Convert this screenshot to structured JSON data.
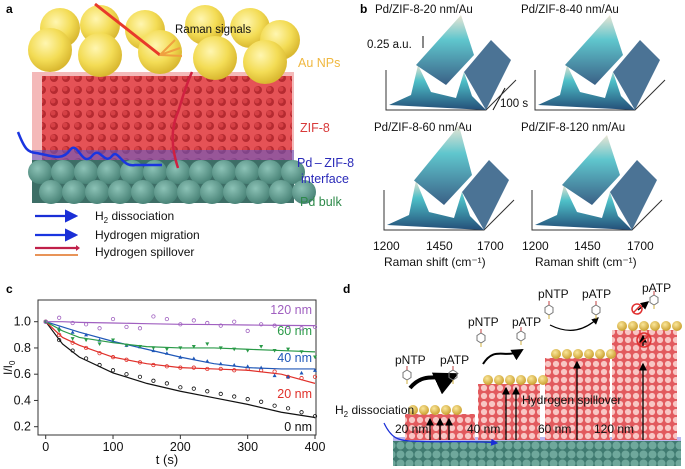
{
  "panel_a": {
    "label": "a",
    "raman_label": "Raman signals",
    "au_label": "Au NPs",
    "zif_label": "ZIF-8",
    "interface_label_1": "Pd – ZIF-8",
    "interface_label_2": "interface",
    "pd_label": "Pd bulk",
    "legend": [
      {
        "text": "H",
        "sub": "2",
        "rest": " dissociation",
        "color": "#1a2fd6"
      },
      {
        "text": "Hydrogen migration",
        "color": "#1a35e0"
      },
      {
        "text": "Hydrogen spillover",
        "color": "#c0204a"
      },
      {
        "text": "",
        "color": "#e07020"
      }
    ],
    "colors": {
      "au": "#f2dc5a",
      "zif": "#e0484c",
      "pd": "#5e9c92",
      "au_text": "#f0b840",
      "zif_text": "#d83a3a",
      "interface_text": "#2a2ab8",
      "pd_text": "#2e8a4a"
    }
  },
  "panel_b": {
    "label": "b",
    "titles": [
      "Pd/ZIF-8-20 nm/Au",
      "Pd/ZIF-8-40 nm/Au",
      "Pd/ZIF-8-60 nm/Au",
      "Pd/ZIF-8-120 nm/Au"
    ],
    "scale_label": "0.25 a.u.",
    "time_label": "100 s",
    "x_ticks": [
      "1200",
      "1450",
      "1700"
    ],
    "xlabel": "Raman shift (cm⁻¹)"
  },
  "chart_data": {
    "type": "scatter",
    "panel_label": "c",
    "xlabel": "t (s)",
    "ylabel": "I/I",
    "ylabel_sub": "0",
    "xlim": [
      0,
      400
    ],
    "ylim": [
      0.15,
      1.1
    ],
    "x_ticks": [
      0,
      100,
      200,
      300,
      400
    ],
    "y_ticks": [
      0.2,
      0.4,
      0.6,
      0.8,
      1.0
    ],
    "grid": false,
    "x": [
      0,
      20,
      40,
      60,
      80,
      100,
      120,
      140,
      160,
      180,
      200,
      220,
      240,
      260,
      280,
      300,
      320,
      340,
      360,
      380,
      400
    ],
    "fit_x": [
      0,
      25,
      50,
      100,
      150,
      200,
      250,
      300,
      350,
      400
    ],
    "series": [
      {
        "name": "0 nm",
        "color": "#111111",
        "values": [
          1.0,
          0.86,
          0.78,
          0.72,
          0.67,
          0.63,
          0.6,
          0.58,
          0.55,
          0.53,
          0.5,
          0.49,
          0.47,
          0.45,
          0.43,
          0.41,
          0.39,
          0.36,
          0.34,
          0.31,
          0.28
        ],
        "fit": [
          1.0,
          0.83,
          0.73,
          0.61,
          0.53,
          0.47,
          0.42,
          0.37,
          0.31,
          0.27
        ]
      },
      {
        "name": "20 nm",
        "color": "#e0302a",
        "values": [
          1.0,
          0.9,
          0.84,
          0.8,
          0.76,
          0.73,
          0.71,
          0.69,
          0.67,
          0.66,
          0.65,
          0.65,
          0.64,
          0.64,
          0.63,
          0.64,
          0.63,
          0.62,
          0.58,
          0.57,
          0.58
        ],
        "fit": [
          1.0,
          0.88,
          0.82,
          0.73,
          0.68,
          0.65,
          0.64,
          0.63,
          0.6,
          0.53
        ]
      },
      {
        "name": "40 nm",
        "color": "#2058b8",
        "values": [
          1.0,
          0.95,
          0.92,
          0.9,
          0.86,
          0.85,
          0.82,
          0.81,
          0.78,
          0.76,
          0.73,
          0.72,
          0.7,
          0.68,
          0.67,
          0.66,
          0.65,
          0.59,
          0.58,
          0.61,
          0.63
        ],
        "fit": [
          1.0,
          0.96,
          0.92,
          0.85,
          0.79,
          0.73,
          0.68,
          0.65,
          0.64,
          0.64
        ]
      },
      {
        "name": "60 nm",
        "color": "#2a9a48",
        "values": [
          1.0,
          0.93,
          0.87,
          0.86,
          0.83,
          0.86,
          0.82,
          0.81,
          0.8,
          0.79,
          0.8,
          0.81,
          0.83,
          0.8,
          0.79,
          0.78,
          0.81,
          0.78,
          0.79,
          0.77,
          0.73
        ],
        "fit": [
          1.0,
          0.93,
          0.88,
          0.84,
          0.81,
          0.8,
          0.8,
          0.79,
          0.78,
          0.77
        ]
      },
      {
        "name": "120 nm",
        "color": "#a060c0",
        "values": [
          1.0,
          1.03,
          0.99,
          0.98,
          0.95,
          1.02,
          0.96,
          0.95,
          1.04,
          1.02,
          0.98,
          1.01,
          0.99,
          0.97,
          1.0,
          0.93,
          0.98,
          0.97,
          0.96,
          0.95,
          0.96
        ],
        "fit": [
          1.0,
          1.0,
          0.995,
          0.99,
          0.985,
          0.98,
          0.978,
          0.975,
          0.972,
          0.97
        ]
      }
    ]
  },
  "panel_d": {
    "label": "d",
    "h2_label": "H",
    "h2_sub": "2",
    "h2_rest": " dissociation",
    "spillover_label": "Hydrogen spillover",
    "thickness_labels": [
      "20 nm",
      "40 nm",
      "60 nm",
      "120 nm"
    ],
    "reactant": "pNTP",
    "product": "pATP"
  }
}
